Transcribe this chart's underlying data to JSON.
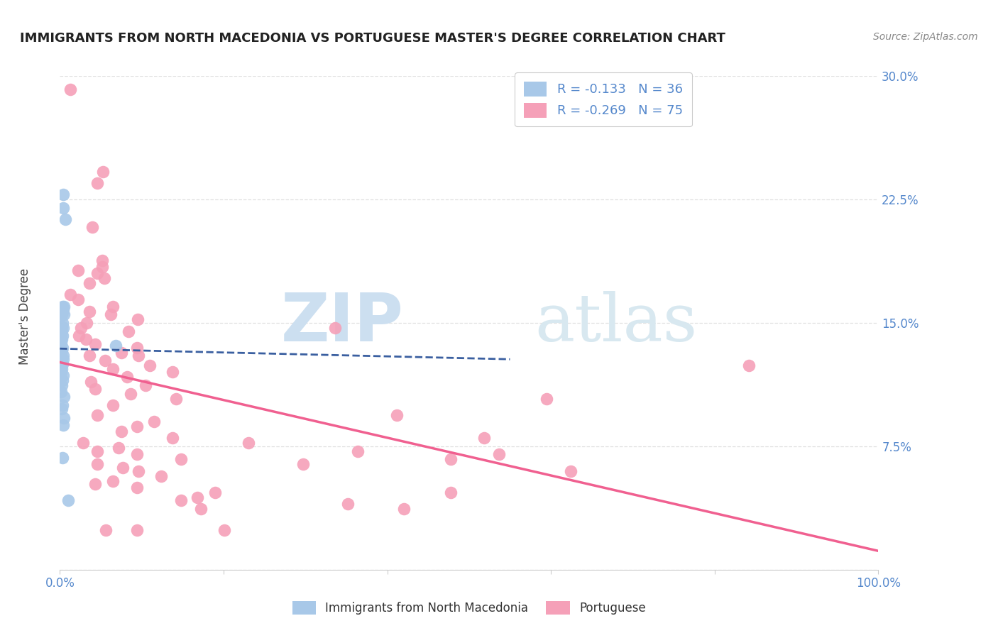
{
  "title": "IMMIGRANTS FROM NORTH MACEDONIA VS PORTUGUESE MASTER'S DEGREE CORRELATION CHART",
  "source": "Source: ZipAtlas.com",
  "ylabel": "Master's Degree",
  "xlim": [
    0,
    1.0
  ],
  "ylim": [
    0,
    0.3
  ],
  "yticks": [
    0.0,
    0.075,
    0.15,
    0.225,
    0.3
  ],
  "ytick_labels": [
    "",
    "7.5%",
    "15.0%",
    "22.5%",
    "30.0%"
  ],
  "blue_color": "#a8c8e8",
  "blue_line_color": "#3a5fa0",
  "pink_color": "#f5a0b8",
  "pink_line_color": "#f06090",
  "blue_R": "-0.133",
  "blue_N": "36",
  "pink_R": "-0.269",
  "pink_N": "75",
  "blue_scatter": [
    [
      0.004,
      0.228
    ],
    [
      0.004,
      0.22
    ],
    [
      0.007,
      0.213
    ],
    [
      0.003,
      0.16
    ],
    [
      0.003,
      0.157
    ],
    [
      0.002,
      0.155
    ],
    [
      0.004,
      0.158
    ],
    [
      0.005,
      0.16
    ],
    [
      0.005,
      0.155
    ],
    [
      0.003,
      0.15
    ],
    [
      0.002,
      0.148
    ],
    [
      0.004,
      0.147
    ],
    [
      0.002,
      0.145
    ],
    [
      0.001,
      0.143
    ],
    [
      0.003,
      0.142
    ],
    [
      0.002,
      0.14
    ],
    [
      0.001,
      0.138
    ],
    [
      0.003,
      0.135
    ],
    [
      0.002,
      0.133
    ],
    [
      0.004,
      0.13
    ],
    [
      0.004,
      0.128
    ],
    [
      0.003,
      0.125
    ],
    [
      0.002,
      0.122
    ],
    [
      0.001,
      0.12
    ],
    [
      0.004,
      0.118
    ],
    [
      0.003,
      0.115
    ],
    [
      0.002,
      0.112
    ],
    [
      0.001,
      0.108
    ],
    [
      0.005,
      0.105
    ],
    [
      0.003,
      0.1
    ],
    [
      0.002,
      0.098
    ],
    [
      0.005,
      0.092
    ],
    [
      0.004,
      0.088
    ],
    [
      0.003,
      0.068
    ],
    [
      0.068,
      0.136
    ],
    [
      0.01,
      0.042
    ]
  ],
  "pink_scatter": [
    [
      0.013,
      0.292
    ],
    [
      0.053,
      0.242
    ],
    [
      0.046,
      0.235
    ],
    [
      0.04,
      0.208
    ],
    [
      0.052,
      0.188
    ],
    [
      0.052,
      0.184
    ],
    [
      0.022,
      0.182
    ],
    [
      0.046,
      0.18
    ],
    [
      0.054,
      0.177
    ],
    [
      0.036,
      0.174
    ],
    [
      0.013,
      0.167
    ],
    [
      0.022,
      0.164
    ],
    [
      0.065,
      0.16
    ],
    [
      0.036,
      0.157
    ],
    [
      0.062,
      0.155
    ],
    [
      0.095,
      0.152
    ],
    [
      0.033,
      0.15
    ],
    [
      0.026,
      0.147
    ],
    [
      0.084,
      0.145
    ],
    [
      0.023,
      0.142
    ],
    [
      0.032,
      0.14
    ],
    [
      0.043,
      0.137
    ],
    [
      0.094,
      0.135
    ],
    [
      0.075,
      0.132
    ],
    [
      0.036,
      0.13
    ],
    [
      0.096,
      0.13
    ],
    [
      0.055,
      0.127
    ],
    [
      0.11,
      0.124
    ],
    [
      0.065,
      0.122
    ],
    [
      0.138,
      0.12
    ],
    [
      0.082,
      0.117
    ],
    [
      0.038,
      0.114
    ],
    [
      0.105,
      0.112
    ],
    [
      0.043,
      0.11
    ],
    [
      0.086,
      0.107
    ],
    [
      0.142,
      0.104
    ],
    [
      0.065,
      0.1
    ],
    [
      0.046,
      0.094
    ],
    [
      0.115,
      0.09
    ],
    [
      0.094,
      0.087
    ],
    [
      0.075,
      0.084
    ],
    [
      0.138,
      0.08
    ],
    [
      0.028,
      0.077
    ],
    [
      0.072,
      0.074
    ],
    [
      0.046,
      0.072
    ],
    [
      0.094,
      0.07
    ],
    [
      0.148,
      0.067
    ],
    [
      0.046,
      0.064
    ],
    [
      0.077,
      0.062
    ],
    [
      0.096,
      0.06
    ],
    [
      0.124,
      0.057
    ],
    [
      0.065,
      0.054
    ],
    [
      0.043,
      0.052
    ],
    [
      0.094,
      0.05
    ],
    [
      0.19,
      0.047
    ],
    [
      0.168,
      0.044
    ],
    [
      0.148,
      0.042
    ],
    [
      0.478,
      0.047
    ],
    [
      0.352,
      0.04
    ],
    [
      0.42,
      0.037
    ],
    [
      0.842,
      0.124
    ],
    [
      0.172,
      0.037
    ],
    [
      0.23,
      0.077
    ],
    [
      0.364,
      0.072
    ],
    [
      0.297,
      0.064
    ],
    [
      0.412,
      0.094
    ],
    [
      0.478,
      0.067
    ],
    [
      0.518,
      0.08
    ],
    [
      0.537,
      0.07
    ],
    [
      0.595,
      0.104
    ],
    [
      0.624,
      0.06
    ],
    [
      0.336,
      0.147
    ],
    [
      0.201,
      0.024
    ],
    [
      0.056,
      0.024
    ],
    [
      0.094,
      0.024
    ]
  ],
  "watermark_zip": "ZIP",
  "watermark_atlas": "atlas",
  "watermark_color": "#ccdff0",
  "grid_color": "#e0e0e0",
  "right_tick_color": "#5588cc"
}
